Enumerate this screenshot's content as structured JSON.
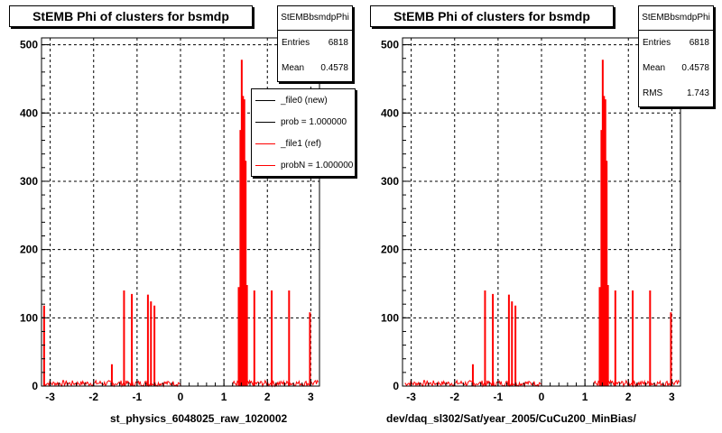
{
  "chart_data": [
    {
      "type": "bar",
      "title": "StEMB Phi of clusters for bsmdp",
      "xlabel": "st_physics_6048025_raw_1020002",
      "ylabel": "",
      "xlim": [
        -3.2,
        3.2
      ],
      "ylim": [
        0,
        510
      ],
      "xticks": [
        -3,
        -2,
        -1,
        0,
        1,
        2,
        3
      ],
      "yticks": [
        0,
        100,
        200,
        300,
        400,
        500
      ],
      "grid": true,
      "stats": {
        "name": "StEMBbsmdpPhi",
        "entries_label": "Entries",
        "entries": "6818",
        "mean_label": "Mean",
        "mean": "0.4578"
      },
      "legend": {
        "placement": "top-right",
        "entries": [
          {
            "label": "_file0 (new)",
            "color": "#000000"
          },
          {
            "label": "prob = 1.000000",
            "color": "#000000"
          },
          {
            "label": "_file1 (ref)",
            "color": "#ff0000"
          },
          {
            "label": "probN = 1.000000",
            "color": "#ff0000"
          }
        ]
      },
      "series": [
        {
          "color": "#ff0000",
          "peaks": [
            [
              -3.14,
              118
            ],
            [
              -1.58,
              32
            ],
            [
              -1.3,
              140
            ],
            [
              -1.12,
              135
            ],
            [
              -0.75,
              134
            ],
            [
              -0.68,
              124
            ],
            [
              -0.6,
              118
            ],
            [
              1.34,
              145
            ],
            [
              1.38,
              375
            ],
            [
              1.41,
              478
            ],
            [
              1.44,
              425
            ],
            [
              1.47,
              420
            ],
            [
              1.5,
              330
            ],
            [
              1.53,
              148
            ],
            [
              1.7,
              140
            ],
            [
              2.1,
              140
            ],
            [
              2.5,
              140
            ],
            [
              2.98,
              108
            ]
          ],
          "noise_level": 8,
          "gap": [
            0.0,
            1.2
          ]
        }
      ]
    },
    {
      "type": "bar",
      "title": "StEMB Phi of clusters for bsmdp",
      "xlabel": "dev/daq_sl302/Sat/year_2005/CuCu200_MinBias/",
      "ylabel": "",
      "xlim": [
        -3.2,
        3.2
      ],
      "ylim": [
        0,
        510
      ],
      "xticks": [
        -3,
        -2,
        -1,
        0,
        1,
        2,
        3
      ],
      "yticks": [
        0,
        100,
        200,
        300,
        400,
        500
      ],
      "grid": true,
      "stats": {
        "name": "StEMBbsmdpPhi",
        "entries_label": "Entries",
        "entries": "6818",
        "mean_label": "Mean",
        "mean": "0.4578",
        "rms_label": "RMS",
        "rms": "1.743"
      },
      "series": [
        {
          "color": "#ff0000",
          "peaks": [
            [
              -1.58,
              32
            ],
            [
              -1.3,
              140
            ],
            [
              -1.12,
              135
            ],
            [
              -0.75,
              134
            ],
            [
              -0.68,
              124
            ],
            [
              -0.6,
              118
            ],
            [
              1.34,
              145
            ],
            [
              1.38,
              375
            ],
            [
              1.41,
              478
            ],
            [
              1.44,
              425
            ],
            [
              1.47,
              420
            ],
            [
              1.5,
              330
            ],
            [
              1.53,
              148
            ],
            [
              1.7,
              140
            ],
            [
              2.1,
              140
            ],
            [
              2.5,
              140
            ],
            [
              2.98,
              108
            ]
          ],
          "noise_level": 8,
          "gap": [
            0.0,
            1.2
          ]
        }
      ]
    }
  ]
}
